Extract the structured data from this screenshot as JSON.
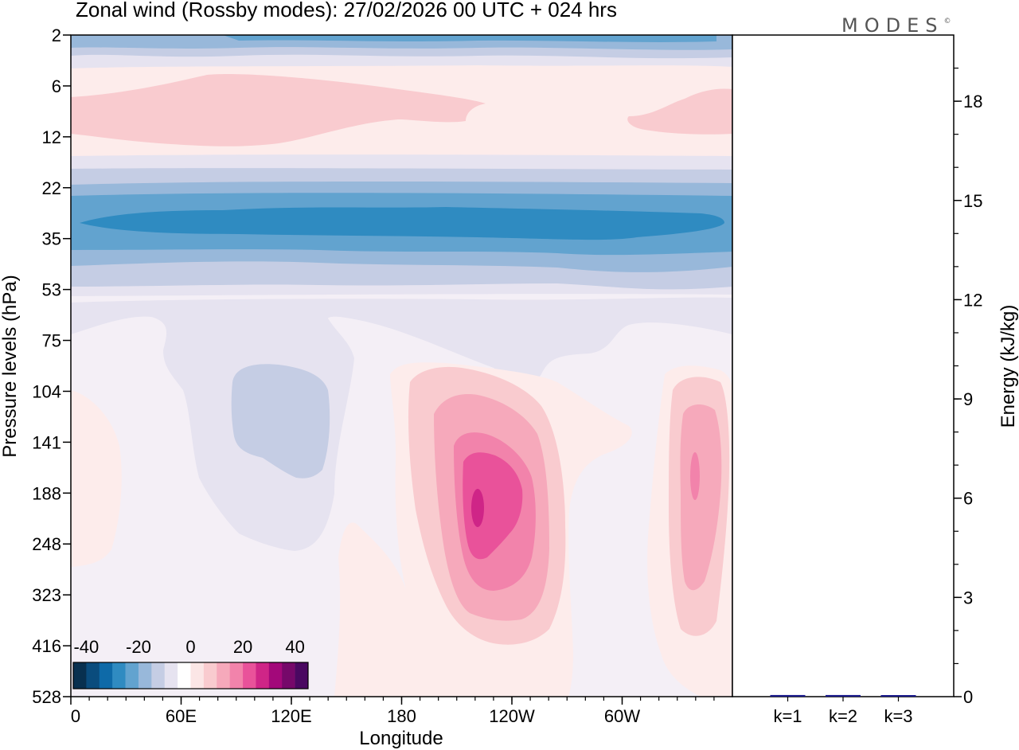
{
  "title": "Zonal wind (Rossby modes):  27/02/2026  00 UTC  + 024 hrs",
  "logo": {
    "text": "MODES",
    "mark": "©"
  },
  "chart_data": [
    {
      "type": "heatmap",
      "title": "Zonal wind (Rossby modes):  27/02/2026  00 UTC  + 024 hrs",
      "xlabel": "Longitude",
      "ylabel": "Pressure levels (hPa)",
      "x_tick_labels": [
        "0",
        "60E",
        "120E",
        "180",
        "120W",
        "60W"
      ],
      "x_range_deg": [
        0,
        360
      ],
      "y_tick_labels": [
        "2",
        "6",
        "12",
        "22",
        "35",
        "53",
        "75",
        "104",
        "141",
        "188",
        "248",
        "323",
        "416",
        "528"
      ],
      "colorbar": {
        "tick_labels": [
          "-40",
          "-20",
          "0",
          "20",
          "40"
        ],
        "range": [
          -45,
          45
        ],
        "step": 5,
        "colors": [
          "#08304f",
          "#0a4c7d",
          "#0e6aa8",
          "#2f8bc1",
          "#62a3cf",
          "#98b8da",
          "#c5cde4",
          "#e6e3f0",
          "#ffffff",
          "#fbe6e6",
          "#f9cbcf",
          "#f6a9bb",
          "#f283ab",
          "#e9529a",
          "#cf2587",
          "#a3087a",
          "#76086a",
          "#4a0861"
        ]
      },
      "colors": {
        "neg_weak": "#e6e3f0",
        "neg_moderate": "#c5cde4",
        "neg_strong": "#98b8da",
        "neg_stronger": "#62a3cf",
        "neg_peak": "#2f8bc1",
        "background": "#f4eff6",
        "pos_weak": "#fdeceb",
        "pos_moderate": "#f9cbcf",
        "pos_strong": "#f6a9bb",
        "pos_stronger": "#f283ab",
        "pos_peak": "#e9529a",
        "pos_extreme": "#cf2587"
      },
      "features": [
        {
          "name": "upper easterly jet",
          "level_hPa": 2,
          "value": -25
        },
        {
          "name": "westerly band",
          "level_hPa": 9,
          "value": 10
        },
        {
          "name": "mid easterly jet",
          "level_hPa": 30,
          "value": -25
        },
        {
          "name": "westerly maximum near 150W",
          "level_hPa": 188,
          "value": 30
        },
        {
          "name": "westerly maximum near 30W",
          "level_hPa": 160,
          "value": 20
        },
        {
          "name": "easterly core near 90E",
          "level_hPa": 130,
          "value": -10
        }
      ]
    },
    {
      "type": "bar",
      "ylabel": "Energy (kJ/kg)",
      "categories": [
        "k=1",
        "k=2",
        "k=3"
      ],
      "values": [
        0.05,
        0.05,
        0.02
      ],
      "ylim": [
        0,
        20
      ],
      "y_ticks": [
        "0",
        "3",
        "6",
        "9",
        "12",
        "15",
        "18"
      ],
      "bar_color": "#1a1a8c"
    }
  ]
}
